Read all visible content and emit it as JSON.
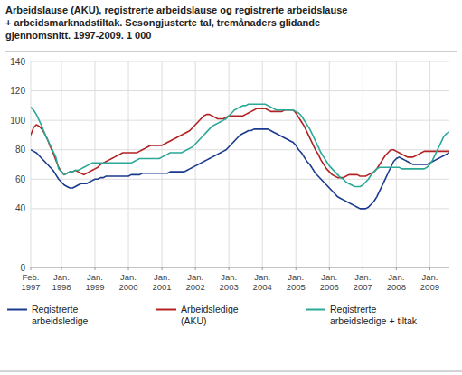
{
  "chart_data": {
    "type": "line",
    "title": "Arbeidslause (AKU), registrerte arbeidslause og registrerte arbeidslause\n+ arbeidsmarknadstiltak. Sesongjusterte tal, tremånaders glidande\ngjennomsnitt. 1997-2009. 1 000",
    "categories": [
      "Feb.\n1997",
      null,
      null,
      null,
      null,
      null,
      null,
      null,
      null,
      null,
      null,
      "Jan.\n1998",
      null,
      null,
      null,
      null,
      null,
      null,
      null,
      null,
      null,
      null,
      null,
      "Jan.\n1999",
      null,
      null,
      null,
      null,
      null,
      null,
      null,
      null,
      null,
      null,
      null,
      "Jan.\n2000",
      null,
      null,
      null,
      null,
      null,
      null,
      null,
      null,
      null,
      null,
      null,
      "Jan.\n2001",
      null,
      null,
      null,
      null,
      null,
      null,
      null,
      null,
      null,
      null,
      null,
      "Jan.\n2002",
      null,
      null,
      null,
      null,
      null,
      null,
      null,
      null,
      null,
      null,
      null,
      "Jan.\n2003",
      null,
      null,
      null,
      null,
      null,
      null,
      null,
      null,
      null,
      null,
      null,
      "Jan.\n2004",
      null,
      null,
      null,
      null,
      null,
      null,
      null,
      null,
      null,
      null,
      null,
      "Jan.\n2005",
      null,
      null,
      null,
      null,
      null,
      null,
      null,
      null,
      null,
      null,
      null,
      "Jan.\n2006",
      null,
      null,
      null,
      null,
      null,
      null,
      null,
      null,
      null,
      null,
      null,
      "Jan.\n2007",
      null,
      null,
      null,
      null,
      null,
      null,
      null,
      null,
      null,
      null,
      null,
      "Jan.\n2008",
      null,
      null,
      null,
      null,
      null,
      null,
      null,
      null,
      null,
      null,
      null,
      "Jan.\n2009",
      null,
      null,
      null,
      null,
      null,
      null,
      null
    ],
    "series": [
      {
        "name": "Registrerte\narbeidsledige",
        "color": "#1a3a8f",
        "values": [
          80,
          79,
          78,
          76,
          74,
          72,
          70,
          68,
          66,
          63,
          60,
          58,
          56,
          55,
          54,
          54,
          55,
          56,
          57,
          57,
          57,
          58,
          59,
          60,
          60,
          61,
          61,
          62,
          62,
          62,
          62,
          62,
          62,
          62,
          62,
          62,
          63,
          63,
          63,
          63,
          64,
          64,
          64,
          64,
          64,
          64,
          64,
          64,
          64,
          64,
          65,
          65,
          65,
          65,
          65,
          65,
          66,
          67,
          68,
          69,
          70,
          71,
          72,
          73,
          74,
          75,
          76,
          77,
          78,
          79,
          80,
          82,
          84,
          86,
          88,
          90,
          91,
          92,
          93,
          93,
          94,
          94,
          94,
          94,
          94,
          94,
          93,
          92,
          91,
          90,
          89,
          88,
          87,
          86,
          85,
          83,
          80,
          78,
          75,
          72,
          70,
          67,
          64,
          62,
          60,
          58,
          56,
          54,
          52,
          50,
          48,
          47,
          46,
          45,
          44,
          43,
          42,
          41,
          40,
          40,
          40,
          41,
          43,
          45,
          48,
          52,
          56,
          60,
          64,
          68,
          72,
          74,
          75,
          74,
          73,
          72,
          71,
          70,
          70,
          70,
          70,
          70,
          70,
          71,
          72,
          73,
          74,
          75,
          76,
          77,
          78
        ]
      },
      {
        "name": "Arbeidsledige\n(AKU)",
        "color": "#b22222",
        "values": [
          90,
          95,
          97,
          96,
          94,
          91,
          87,
          82,
          78,
          73,
          68,
          65,
          63,
          64,
          65,
          65,
          66,
          65,
          64,
          63,
          64,
          65,
          66,
          67,
          68,
          70,
          71,
          72,
          73,
          74,
          75,
          76,
          77,
          78,
          78,
          78,
          78,
          78,
          78,
          79,
          80,
          81,
          82,
          83,
          83,
          83,
          83,
          83,
          84,
          85,
          86,
          87,
          88,
          89,
          90,
          91,
          92,
          93,
          95,
          97,
          99,
          101,
          103,
          104,
          104,
          103,
          102,
          101,
          101,
          101,
          102,
          103,
          103,
          103,
          103,
          103,
          103,
          104,
          105,
          106,
          107,
          108,
          108,
          108,
          108,
          107,
          106,
          106,
          106,
          106,
          106,
          107,
          107,
          107,
          107,
          105,
          102,
          99,
          96,
          92,
          88,
          84,
          80,
          77,
          73,
          70,
          67,
          65,
          63,
          62,
          61,
          61,
          61,
          62,
          63,
          63,
          63,
          63,
          62,
          62,
          62,
          63,
          64,
          65,
          67,
          70,
          73,
          76,
          78,
          80,
          80,
          79,
          78,
          77,
          76,
          75,
          75,
          75,
          76,
          77,
          78,
          79,
          79,
          79,
          79,
          79,
          79,
          79,
          79,
          79,
          79
        ]
      },
      {
        "name": "Registrerte\narbeidsledige + tiltak",
        "color": "#2aa898",
        "values": [
          109,
          107,
          104,
          100,
          96,
          91,
          87,
          83,
          79,
          75,
          67,
          65,
          63,
          64,
          65,
          65,
          66,
          66,
          67,
          68,
          69,
          70,
          71,
          71,
          71,
          71,
          71,
          71,
          71,
          71,
          71,
          71,
          71,
          71,
          71,
          71,
          71,
          72,
          73,
          74,
          74,
          74,
          74,
          74,
          74,
          74,
          74,
          75,
          76,
          77,
          78,
          78,
          78,
          78,
          78,
          79,
          80,
          81,
          82,
          84,
          86,
          88,
          90,
          92,
          94,
          96,
          97,
          98,
          99,
          100,
          101,
          103,
          105,
          107,
          108,
          109,
          110,
          110,
          111,
          111,
          111,
          111,
          111,
          111,
          111,
          110,
          109,
          108,
          107,
          107,
          107,
          107,
          107,
          107,
          107,
          106,
          105,
          103,
          100,
          97,
          94,
          90,
          86,
          82,
          78,
          75,
          72,
          69,
          67,
          65,
          63,
          61,
          60,
          58,
          57,
          56,
          55,
          55,
          55,
          56,
          58,
          60,
          63,
          65,
          67,
          68,
          68,
          68,
          68,
          68,
          68,
          68,
          68,
          67,
          67,
          67,
          67,
          67,
          67,
          67,
          67,
          67,
          68,
          70,
          73,
          77,
          81,
          85,
          89,
          91,
          92
        ]
      }
    ],
    "ylim": [
      0,
      140
    ],
    "yticks": [
      0,
      40,
      60,
      80,
      100,
      120,
      140
    ],
    "grid": true,
    "legend": "bottom"
  }
}
